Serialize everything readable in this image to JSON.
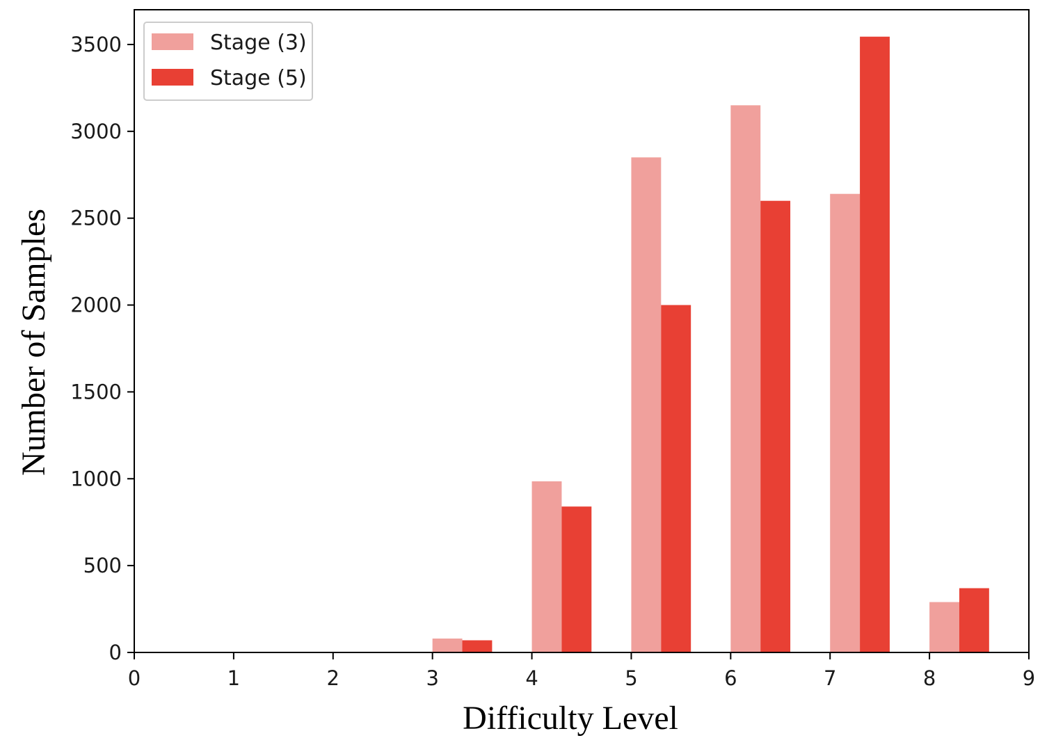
{
  "chart_data": {
    "type": "bar",
    "xlabel": "Difficulty Level",
    "ylabel": "Number of Samples",
    "xlim": [
      0,
      9
    ],
    "ylim": [
      0,
      3700
    ],
    "x_ticks": [
      "0",
      "1",
      "2",
      "3",
      "4",
      "5",
      "6",
      "7",
      "8",
      "9"
    ],
    "y_ticks": [
      "0",
      "500",
      "1000",
      "1500",
      "2000",
      "2500",
      "3000",
      "3500"
    ],
    "grid": false,
    "legend_position": "top-left",
    "categories": [
      3,
      4,
      5,
      6,
      7,
      8
    ],
    "series": [
      {
        "name": "Stage (3)",
        "color": "#f0a09c",
        "values": [
          80,
          985,
          2850,
          3150,
          2640,
          290
        ]
      },
      {
        "name": "Stage (5)",
        "color": "#e84034",
        "values": [
          70,
          840,
          2000,
          2600,
          3545,
          370
        ]
      }
    ]
  }
}
